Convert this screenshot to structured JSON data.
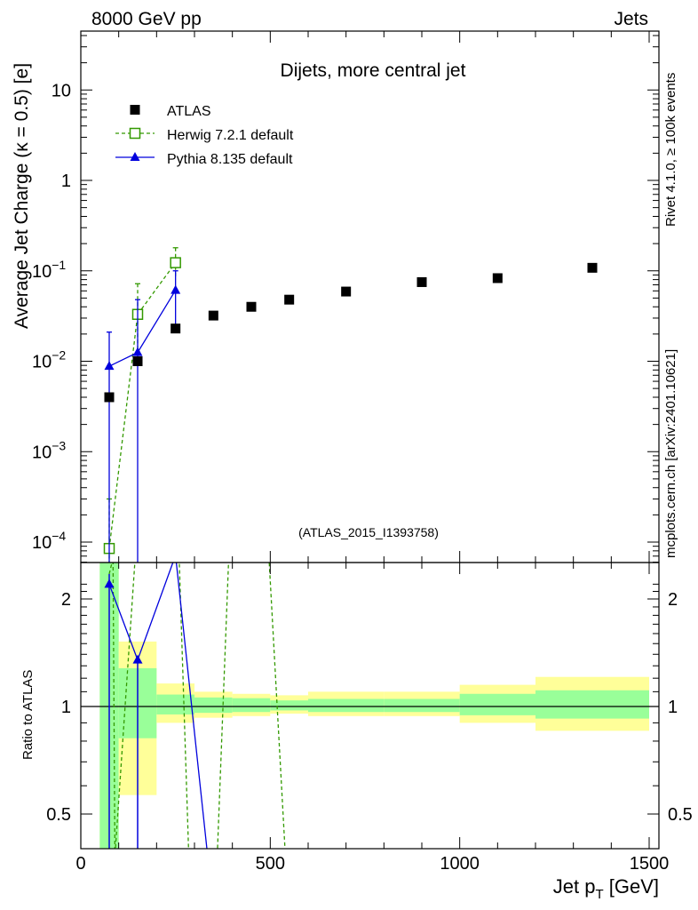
{
  "header": {
    "left": "8000 GeV pp",
    "right": "Jets",
    "side_top": "Rivet 4.1.0, ≥ 100k events",
    "side_bottom": "mcplots.cern.ch [arXiv:2401.10621]"
  },
  "chart_data": [
    {
      "type": "scatter",
      "panel": "main",
      "title": "Dijets, more central jet",
      "watermark": "(ATLAS_2015_I1393758)",
      "ylabel": "Average Jet Charge (κ = 0.5) [e]",
      "xlabel": "Jet p_T [GeV]",
      "xlim": [
        0,
        1500
      ],
      "ylim": [
        6e-05,
        50
      ],
      "yscale": "log",
      "yticks": [
        0.0001,
        0.001,
        0.01,
        0.1,
        1,
        10
      ],
      "ytick_labels": [
        {
          "base": "10",
          "exp": "−4"
        },
        {
          "base": "10",
          "exp": "−3"
        },
        {
          "base": "10",
          "exp": "−2"
        },
        {
          "base": "10",
          "exp": "−1"
        },
        {
          "base": "1",
          "exp": ""
        },
        {
          "base": "10",
          "exp": ""
        }
      ],
      "series": [
        {
          "name": "ATLAS",
          "color": "#000000",
          "marker": "filled-square",
          "x": [
            75,
            150,
            250,
            350,
            450,
            550,
            700,
            900,
            1100,
            1350
          ],
          "xerr": [
            25,
            50,
            50,
            50,
            50,
            50,
            100,
            100,
            100,
            150
          ],
          "y": [
            0.004,
            0.01,
            0.023,
            0.032,
            0.04,
            0.048,
            0.059,
            0.075,
            0.083,
            0.108
          ]
        },
        {
          "name": "Herwig 7.2.1 default",
          "color": "#339900",
          "marker": "open-square",
          "line": "dashed",
          "x": [
            75,
            150,
            250
          ],
          "y": [
            8.5e-05,
            0.033,
            0.123
          ],
          "ylow": [
            1e-05,
            0.01,
            0.085
          ],
          "yhigh": [
            0.0003,
            0.072,
            0.18
          ]
        },
        {
          "name": "Pythia 8.135 default",
          "color": "#0000dd",
          "marker": "filled-triangle",
          "line": "solid",
          "x": [
            75,
            150,
            250
          ],
          "y": [
            0.0088,
            0.0125,
            0.061
          ],
          "ylow": [
            1e-05,
            1e-05,
            0.023
          ],
          "yhigh": [
            0.021,
            0.048,
            0.1
          ]
        }
      ]
    },
    {
      "type": "line",
      "panel": "ratio",
      "ylabel": "Ratio to ATLAS",
      "xlabel": "Jet p_T [GeV]",
      "xlim": [
        0,
        1500
      ],
      "ylim": [
        0.43,
        2.35
      ],
      "yscale": "log",
      "yticks": [
        0.5,
        1,
        2
      ],
      "ytick_labels": [
        "0.5",
        "1",
        "2"
      ],
      "xticks": [
        0,
        500,
        1000,
        1500
      ],
      "xtick_labels": [
        "0",
        "500",
        "1000",
        "1500"
      ],
      "reference_line": 1,
      "bins": [
        {
          "lo": 50,
          "hi": 100,
          "inner_lo": 0.01,
          "inner_hi": 10,
          "outer_lo": 0.01,
          "outer_hi": 10
        },
        {
          "lo": 100,
          "hi": 200,
          "inner_lo": 0.815,
          "inner_hi": 1.28,
          "outer_lo": 0.565,
          "outer_hi": 1.52
        },
        {
          "lo": 200,
          "hi": 300,
          "inner_lo": 0.95,
          "inner_hi": 1.08,
          "outer_lo": 0.9,
          "outer_hi": 1.16
        },
        {
          "lo": 300,
          "hi": 400,
          "inner_lo": 0.96,
          "inner_hi": 1.06,
          "outer_lo": 0.93,
          "outer_hi": 1.1
        },
        {
          "lo": 400,
          "hi": 500,
          "inner_lo": 0.965,
          "inner_hi": 1.055,
          "outer_lo": 0.94,
          "outer_hi": 1.085
        },
        {
          "lo": 500,
          "hi": 600,
          "inner_lo": 0.975,
          "inner_hi": 1.04,
          "outer_lo": 0.955,
          "outer_hi": 1.075
        },
        {
          "lo": 600,
          "hi": 800,
          "inner_lo": 0.965,
          "inner_hi": 1.05,
          "outer_lo": 0.94,
          "outer_hi": 1.1
        },
        {
          "lo": 800,
          "hi": 1000,
          "inner_lo": 0.965,
          "inner_hi": 1.05,
          "outer_lo": 0.94,
          "outer_hi": 1.1
        },
        {
          "lo": 1000,
          "hi": 1200,
          "inner_lo": 0.945,
          "inner_hi": 1.085,
          "outer_lo": 0.9,
          "outer_hi": 1.15
        },
        {
          "lo": 1200,
          "hi": 1500,
          "inner_lo": 0.925,
          "inner_hi": 1.11,
          "outer_lo": 0.855,
          "outer_hi": 1.21
        }
      ],
      "series": [
        {
          "name": "Herwig 7.2.1 default",
          "color": "#339900",
          "line": "dashed",
          "points": [
            [
              75,
              2.35
            ],
            [
              85,
              2.6
            ],
            [
              90,
              0.38
            ],
            [
              150,
              3.3
            ],
            [
              250,
              5.35
            ],
            [
              285,
              0.38
            ],
            [
              360,
              0.38
            ],
            [
              395,
              3.5
            ],
            [
              455,
              3.5
            ],
            [
              490,
              3.5
            ],
            [
              540,
              0.38
            ]
          ]
        },
        {
          "name": "Pythia 8.135 default",
          "color": "#0000dd",
          "line": "solid",
          "markers_x": [
            75,
            150
          ],
          "markers_y": [
            2.2,
            1.35
          ],
          "points": [
            [
              75,
              2.2
            ],
            [
              150,
              1.35
            ],
            [
              250,
              2.65
            ],
            [
              335,
              0.38
            ]
          ],
          "errbars": [
            [
              75,
              0.38,
              2.35
            ],
            [
              150,
              0.38,
              1.35
            ]
          ]
        }
      ]
    }
  ]
}
